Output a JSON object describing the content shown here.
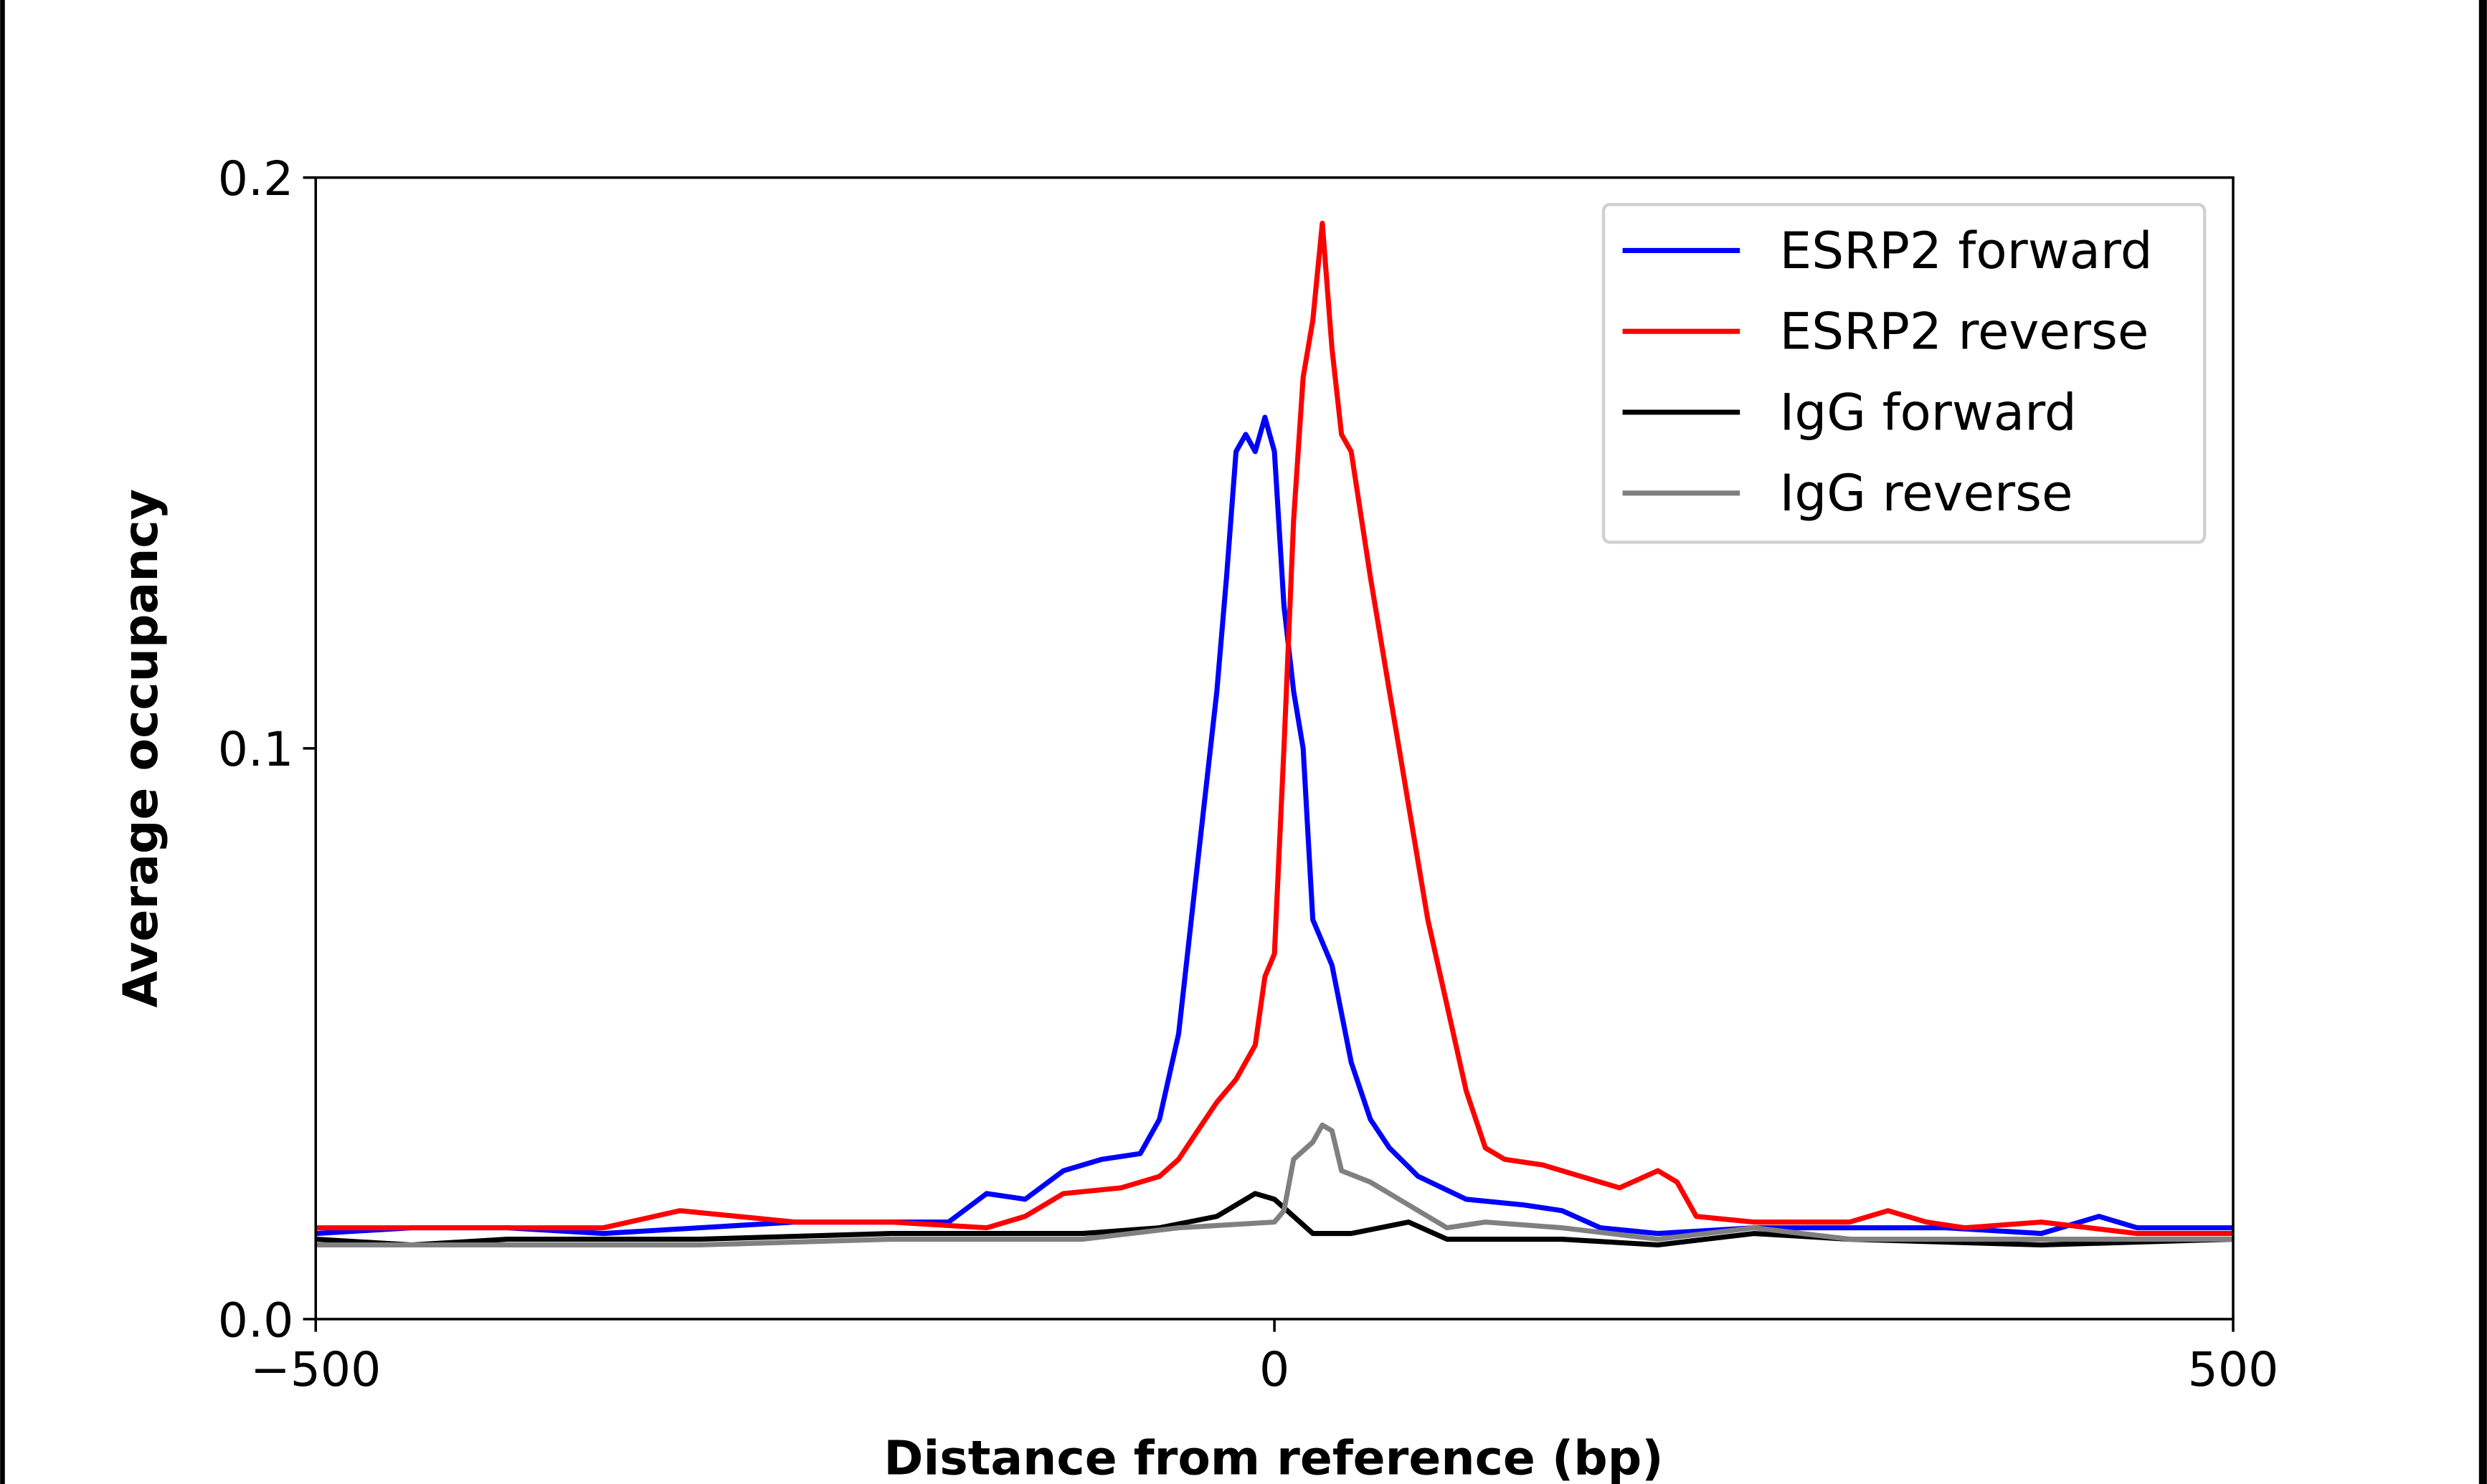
{
  "chart_data": {
    "type": "line",
    "title": "",
    "xlabel": "Distance from reference (bp)",
    "ylabel": "Average occupancy",
    "xlim": [
      -500,
      500
    ],
    "ylim": [
      0.0,
      0.2
    ],
    "xticks": [
      -500,
      0,
      500
    ],
    "xtick_labels": [
      "−500",
      "0",
      "500"
    ],
    "yticks": [
      0.0,
      0.1,
      0.2
    ],
    "ytick_labels": [
      "0.0",
      "0.1",
      "0.2"
    ],
    "grid": false,
    "legend_position": "top-right",
    "series": [
      {
        "name": "ESRP2 forward",
        "color": "#0000ff",
        "x": [
          -500,
          -450,
          -400,
          -350,
          -300,
          -250,
          -200,
          -170,
          -150,
          -130,
          -110,
          -90,
          -70,
          -60,
          -50,
          -40,
          -30,
          -25,
          -20,
          -15,
          -10,
          -5,
          0,
          5,
          10,
          15,
          20,
          30,
          40,
          50,
          60,
          75,
          100,
          130,
          150,
          170,
          200,
          250,
          300,
          350,
          400,
          430,
          450,
          500
        ],
        "y": [
          0.015,
          0.016,
          0.016,
          0.015,
          0.016,
          0.017,
          0.017,
          0.017,
          0.022,
          0.021,
          0.026,
          0.028,
          0.029,
          0.035,
          0.05,
          0.08,
          0.11,
          0.13,
          0.152,
          0.155,
          0.152,
          0.158,
          0.152,
          0.125,
          0.11,
          0.1,
          0.07,
          0.062,
          0.045,
          0.035,
          0.03,
          0.025,
          0.021,
          0.02,
          0.019,
          0.016,
          0.015,
          0.016,
          0.016,
          0.016,
          0.015,
          0.018,
          0.016,
          0.016
        ]
      },
      {
        "name": "ESRP2 reverse",
        "color": "#ff0000",
        "x": [
          -500,
          -450,
          -400,
          -350,
          -310,
          -280,
          -250,
          -200,
          -150,
          -130,
          -110,
          -80,
          -60,
          -50,
          -40,
          -30,
          -20,
          -10,
          -5,
          0,
          5,
          10,
          15,
          20,
          25,
          30,
          35,
          40,
          50,
          60,
          65,
          70,
          80,
          90,
          100,
          110,
          120,
          140,
          160,
          180,
          200,
          210,
          220,
          250,
          300,
          320,
          340,
          360,
          400,
          450,
          500
        ],
        "y": [
          0.016,
          0.016,
          0.016,
          0.016,
          0.019,
          0.018,
          0.017,
          0.017,
          0.016,
          0.018,
          0.022,
          0.023,
          0.025,
          0.028,
          0.033,
          0.038,
          0.042,
          0.048,
          0.06,
          0.064,
          0.1,
          0.14,
          0.165,
          0.175,
          0.192,
          0.17,
          0.155,
          0.152,
          0.13,
          0.11,
          0.1,
          0.09,
          0.07,
          0.055,
          0.04,
          0.03,
          0.028,
          0.027,
          0.025,
          0.023,
          0.026,
          0.024,
          0.018,
          0.017,
          0.017,
          0.019,
          0.017,
          0.016,
          0.017,
          0.015,
          0.015
        ]
      },
      {
        "name": "IgG forward",
        "color": "#000000",
        "x": [
          -500,
          -450,
          -400,
          -300,
          -200,
          -100,
          -60,
          -30,
          -10,
          0,
          10,
          20,
          40,
          70,
          90,
          150,
          200,
          250,
          300,
          400,
          500
        ],
        "y": [
          0.014,
          0.013,
          0.014,
          0.014,
          0.015,
          0.015,
          0.016,
          0.018,
          0.022,
          0.021,
          0.018,
          0.015,
          0.015,
          0.017,
          0.014,
          0.014,
          0.013,
          0.015,
          0.014,
          0.013,
          0.014
        ]
      },
      {
        "name": "IgG reverse",
        "color": "#808080",
        "x": [
          -500,
          -450,
          -400,
          -300,
          -200,
          -100,
          -50,
          0,
          5,
          10,
          20,
          25,
          30,
          35,
          50,
          70,
          90,
          110,
          150,
          200,
          250,
          300,
          400,
          500
        ],
        "y": [
          0.013,
          0.013,
          0.013,
          0.013,
          0.014,
          0.014,
          0.016,
          0.017,
          0.019,
          0.028,
          0.031,
          0.034,
          0.033,
          0.026,
          0.024,
          0.02,
          0.016,
          0.017,
          0.016,
          0.014,
          0.016,
          0.014,
          0.014,
          0.014
        ]
      }
    ]
  }
}
